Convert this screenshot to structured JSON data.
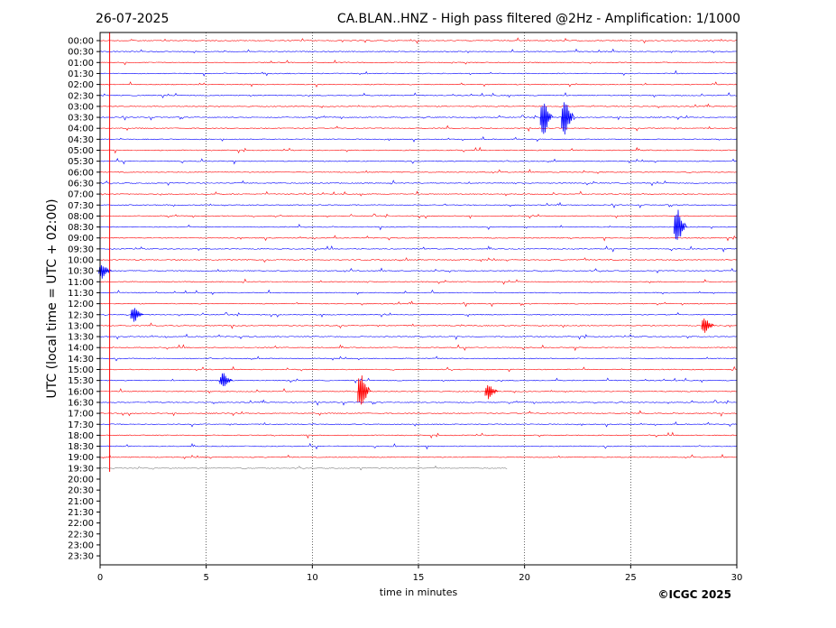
{
  "header": {
    "date": "26-07-2025",
    "title": "CA.BLAN..HNZ - High pass filtered @2Hz - Amplification: 1/1000"
  },
  "copyright": "©ICGC 2025",
  "colors": {
    "red": "#ff0000",
    "blue": "#0000ff",
    "grey": "#555555"
  },
  "chart_data": {
    "type": "line",
    "title": "CA.BLAN..HNZ - High pass filtered @2Hz - Amplification: 1/1000",
    "xlabel": "time in minutes",
    "ylabel": "UTC (local time = UTC + 02:00)",
    "xlim": [
      0,
      30
    ],
    "xticks": [
      "0",
      "5",
      "10",
      "15",
      "20",
      "25",
      "30"
    ],
    "grid": "vertical dotted at 5-minute ticks",
    "rows": [
      "00:00",
      "00:30",
      "01:00",
      "01:30",
      "02:00",
      "02:30",
      "03:00",
      "03:30",
      "04:00",
      "04:30",
      "05:00",
      "05:30",
      "06:00",
      "06:30",
      "07:00",
      "07:30",
      "08:00",
      "08:30",
      "09:00",
      "09:30",
      "10:00",
      "10:30",
      "11:00",
      "11:30",
      "12:00",
      "12:30",
      "13:00",
      "13:30",
      "14:00",
      "14:30",
      "15:00",
      "15:30",
      "16:00",
      "16:30",
      "17:00",
      "17:30",
      "18:00",
      "18:30",
      "19:00",
      "19:30",
      "20:00",
      "20:30",
      "21:00",
      "21:30",
      "22:00",
      "22:30",
      "23:00",
      "23:30"
    ],
    "traces_recorded_through": "19:30",
    "last_trace_end_minute": 19.2,
    "row_colors": "alternating red (even rows) / blue (odd rows)",
    "events": [
      {
        "row": "03:30",
        "minute": 21.0,
        "amplitude": "large"
      },
      {
        "row": "03:30",
        "minute": 22.0,
        "amplitude": "large"
      },
      {
        "row": "08:30",
        "minute": 27.3,
        "amplitude": "large"
      },
      {
        "row": "10:30",
        "minute": 0.2,
        "amplitude": "medium"
      },
      {
        "row": "12:30",
        "minute": 1.7,
        "amplitude": "medium"
      },
      {
        "row": "13:00",
        "minute": 28.6,
        "amplitude": "medium"
      },
      {
        "row": "15:30",
        "minute": 5.9,
        "amplitude": "medium"
      },
      {
        "row": "16:00",
        "minute": 12.4,
        "amplitude": "large"
      },
      {
        "row": "16:00",
        "minute": 18.4,
        "amplitude": "medium"
      }
    ]
  }
}
